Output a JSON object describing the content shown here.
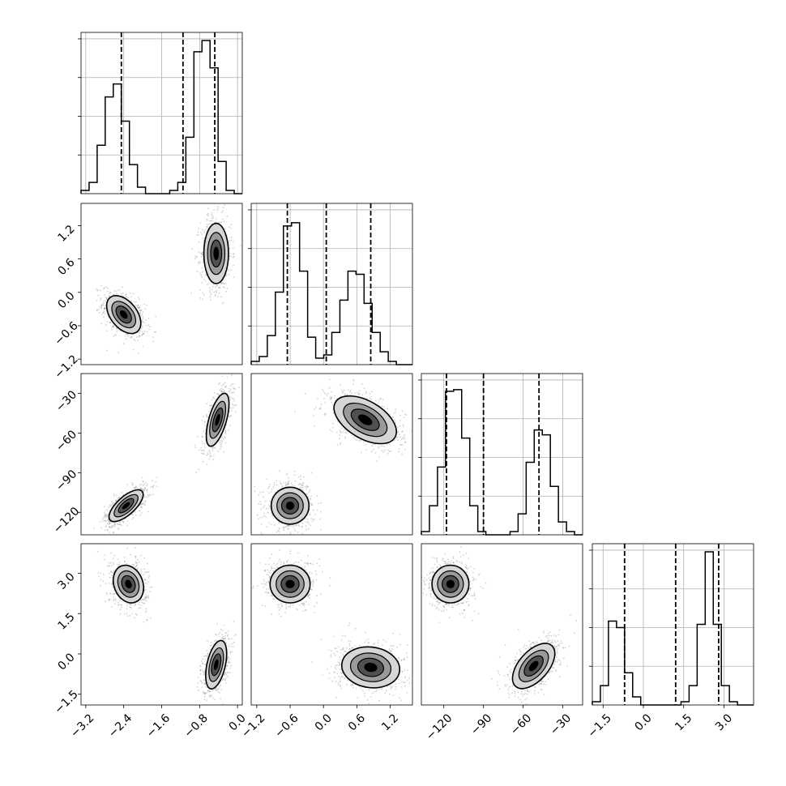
{
  "chart_data": {
    "type": "corner",
    "parameters": 4,
    "grid": true,
    "colors": {
      "density": "#000000",
      "scatter": "#7f7f7f",
      "contour": "#000000",
      "grid": "#b0b0b0"
    },
    "axes": [
      {
        "range": [
          -3.3,
          0.1
        ],
        "ticks": [
          -3.2,
          -2.4,
          -1.6,
          -0.8,
          0.0
        ],
        "tick_labels": [
          "−3.2",
          "−2.4",
          "−1.6",
          "−0.8",
          "0.0"
        ]
      },
      {
        "range": [
          -1.3,
          1.6
        ],
        "ticks": [
          -1.2,
          -0.6,
          0.0,
          0.6,
          1.2
        ],
        "tick_labels": [
          "−1.2",
          "−0.6",
          "0.0",
          "0.6",
          "1.2"
        ]
      },
      {
        "range": [
          -137,
          -15
        ],
        "ticks": [
          -120,
          -90,
          -60,
          -30
        ],
        "tick_labels": [
          "−120",
          "−90",
          "−60",
          "−30"
        ]
      },
      {
        "range": [
          -1.9,
          4.1
        ],
        "ticks": [
          -1.5,
          0.0,
          1.5,
          3.0
        ],
        "tick_labels": [
          "−1.5",
          "0.0",
          "1.5",
          "3.0"
        ]
      }
    ],
    "quantiles": [
      [
        -2.45,
        -1.15,
        -0.48
      ],
      [
        -0.65,
        0.05,
        0.85
      ],
      [
        -118,
        -90,
        -48
      ],
      [
        -0.7,
        1.2,
        2.8
      ]
    ],
    "histograms": [
      {
        "bins": 20,
        "counts": [
          0.02,
          0.07,
          0.3,
          0.6,
          0.68,
          0.45,
          0.18,
          0.04,
          0.0,
          0.0,
          0.0,
          0.02,
          0.07,
          0.35,
          0.88,
          0.95,
          0.78,
          0.2,
          0.02,
          0.0
        ]
      },
      {
        "bins": 20,
        "counts": [
          0.02,
          0.05,
          0.18,
          0.45,
          0.86,
          0.88,
          0.58,
          0.17,
          0.04,
          0.06,
          0.2,
          0.4,
          0.58,
          0.56,
          0.38,
          0.2,
          0.08,
          0.02,
          0.0,
          0.0
        ]
      },
      {
        "bins": 20,
        "counts": [
          0.02,
          0.18,
          0.42,
          0.89,
          0.9,
          0.6,
          0.18,
          0.02,
          0.0,
          0.0,
          0.0,
          0.02,
          0.13,
          0.45,
          0.65,
          0.62,
          0.3,
          0.08,
          0.02,
          0.0
        ]
      },
      {
        "bins": 20,
        "counts": [
          0.02,
          0.12,
          0.52,
          0.48,
          0.2,
          0.05,
          0.0,
          0.0,
          0.0,
          0.0,
          0.0,
          0.02,
          0.12,
          0.5,
          0.95,
          0.5,
          0.12,
          0.02,
          0.0,
          0.0
        ]
      }
    ],
    "modes": [
      {
        "pair": [
          0,
          1
        ],
        "blobs": [
          {
            "mean": [
              -2.4,
              -0.4
            ],
            "sd": [
              0.18,
              0.17
            ],
            "rho": -0.45
          },
          {
            "mean": [
              -0.45,
              0.7
            ],
            "sd": [
              0.13,
              0.27
            ],
            "rho": 0.0
          }
        ]
      },
      {
        "pair": [
          0,
          2
        ],
        "blobs": [
          {
            "mean": [
              -2.35,
              -115
            ],
            "sd": [
              0.18,
              6
            ],
            "rho": 0.7
          },
          {
            "mean": [
              -0.42,
              -50
            ],
            "sd": [
              0.12,
              10
            ],
            "rho": 0.6
          }
        ]
      },
      {
        "pair": [
          1,
          2
        ],
        "blobs": [
          {
            "mean": [
              -0.6,
              -115
            ],
            "sd": [
              0.17,
              7
            ],
            "rho": 0.0
          },
          {
            "mean": [
              0.75,
              -50
            ],
            "sd": [
              0.28,
              9
            ],
            "rho": -0.5
          }
        ]
      },
      {
        "pair": [
          0,
          3
        ],
        "blobs": [
          {
            "mean": [
              -2.3,
              2.6
            ],
            "sd": [
              0.16,
              0.35
            ],
            "rho": -0.2
          },
          {
            "mean": [
              -0.45,
              -0.4
            ],
            "sd": [
              0.11,
              0.45
            ],
            "rho": 0.45
          }
        ]
      },
      {
        "pair": [
          1,
          3
        ],
        "blobs": [
          {
            "mean": [
              -0.6,
              2.6
            ],
            "sd": [
              0.18,
              0.35
            ],
            "rho": 0.0
          },
          {
            "mean": [
              0.85,
              -0.5
            ],
            "sd": [
              0.26,
              0.38
            ],
            "rho": -0.1
          }
        ]
      },
      {
        "pair": [
          2,
          3
        ],
        "blobs": [
          {
            "mean": [
              -115,
              2.6
            ],
            "sd": [
              7,
              0.35
            ],
            "rho": 0.0
          },
          {
            "mean": [
              -52,
              -0.45
            ],
            "sd": [
              8,
              0.42
            ],
            "rho": 0.55
          }
        ]
      }
    ]
  }
}
